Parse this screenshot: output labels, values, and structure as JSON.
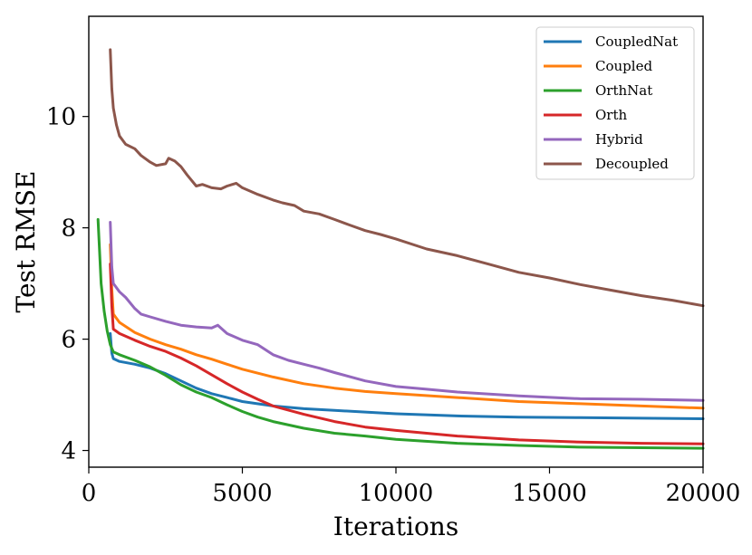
{
  "chart_data": {
    "type": "line",
    "title": "",
    "xlabel": "Iterations",
    "ylabel": "Test RMSE",
    "xlim": [
      0,
      20000
    ],
    "ylim": [
      3.7,
      11.8
    ],
    "xticks": [
      0,
      5000,
      10000,
      15000,
      20000
    ],
    "yticks": [
      4,
      6,
      8,
      10
    ],
    "legend_position": "top-right",
    "grid": false,
    "series": [
      {
        "name": "CoupledNat",
        "color": "#1f77b4",
        "x": [
          700,
          750,
          800,
          1000,
          1500,
          2000,
          2500,
          3000,
          3500,
          4000,
          4500,
          5000,
          6000,
          7000,
          8000,
          9000,
          10000,
          12000,
          14000,
          16000,
          18000,
          20000
        ],
        "y": [
          6.1,
          5.75,
          5.65,
          5.6,
          5.55,
          5.48,
          5.38,
          5.25,
          5.12,
          5.02,
          4.95,
          4.88,
          4.8,
          4.75,
          4.72,
          4.69,
          4.66,
          4.62,
          4.6,
          4.59,
          4.58,
          4.57
        ]
      },
      {
        "name": "Coupled",
        "color": "#ff7f0e",
        "x": [
          700,
          750,
          800,
          1000,
          1500,
          2000,
          2500,
          3000,
          3500,
          4000,
          4500,
          5000,
          6000,
          7000,
          8000,
          9000,
          10000,
          12000,
          14000,
          16000,
          18000,
          20000
        ],
        "y": [
          7.7,
          6.9,
          6.45,
          6.3,
          6.12,
          6.0,
          5.9,
          5.82,
          5.72,
          5.64,
          5.55,
          5.46,
          5.32,
          5.2,
          5.12,
          5.06,
          5.02,
          4.95,
          4.88,
          4.84,
          4.8,
          4.76
        ]
      },
      {
        "name": "OrthNat",
        "color": "#2ca02c",
        "x": [
          300,
          400,
          500,
          600,
          700,
          800,
          1000,
          1500,
          2000,
          2500,
          3000,
          3500,
          4000,
          4500,
          5000,
          5500,
          6000,
          7000,
          8000,
          9000,
          10000,
          12000,
          14000,
          16000,
          18000,
          20000
        ],
        "y": [
          8.15,
          7.0,
          6.5,
          6.15,
          5.9,
          5.77,
          5.72,
          5.62,
          5.5,
          5.35,
          5.18,
          5.05,
          4.95,
          4.82,
          4.7,
          4.6,
          4.52,
          4.4,
          4.31,
          4.26,
          4.2,
          4.13,
          4.09,
          4.06,
          4.05,
          4.04
        ]
      },
      {
        "name": "Orth",
        "color": "#d62728",
        "x": [
          700,
          750,
          800,
          1000,
          1500,
          2000,
          2500,
          3000,
          3500,
          4000,
          4500,
          5000,
          5500,
          6000,
          7000,
          8000,
          9000,
          10000,
          12000,
          14000,
          16000,
          18000,
          20000
        ],
        "y": [
          7.35,
          6.6,
          6.18,
          6.1,
          5.98,
          5.87,
          5.78,
          5.66,
          5.52,
          5.36,
          5.2,
          5.05,
          4.92,
          4.8,
          4.65,
          4.52,
          4.42,
          4.36,
          4.26,
          4.19,
          4.15,
          4.13,
          4.12
        ]
      },
      {
        "name": "Hybrid",
        "color": "#9467bd",
        "x": [
          700,
          750,
          800,
          1000,
          1200,
          1500,
          1700,
          2000,
          2500,
          3000,
          3500,
          4000,
          4200,
          4500,
          5000,
          5500,
          6000,
          6500,
          7000,
          7500,
          8000,
          9000,
          10000,
          11000,
          12000,
          14000,
          16000,
          18000,
          20000
        ],
        "y": [
          8.1,
          7.3,
          7.0,
          6.85,
          6.75,
          6.55,
          6.45,
          6.4,
          6.32,
          6.25,
          6.22,
          6.2,
          6.25,
          6.1,
          5.98,
          5.9,
          5.72,
          5.62,
          5.55,
          5.48,
          5.4,
          5.25,
          5.15,
          5.1,
          5.05,
          4.98,
          4.93,
          4.92,
          4.9
        ]
      },
      {
        "name": "Decoupled",
        "color": "#8c564b",
        "x": [
          700,
          750,
          800,
          900,
          1000,
          1200,
          1500,
          1700,
          2000,
          2200,
          2500,
          2600,
          2800,
          3000,
          3200,
          3500,
          3700,
          4000,
          4300,
          4500,
          4800,
          5000,
          5500,
          6000,
          6300,
          6700,
          7000,
          7500,
          8000,
          8500,
          9000,
          9500,
          10000,
          11000,
          12000,
          13000,
          14000,
          15000,
          16000,
          17000,
          18000,
          19000,
          20000
        ],
        "y": [
          11.2,
          10.5,
          10.15,
          9.85,
          9.65,
          9.5,
          9.42,
          9.3,
          9.18,
          9.12,
          9.15,
          9.25,
          9.2,
          9.1,
          8.95,
          8.75,
          8.78,
          8.72,
          8.7,
          8.75,
          8.8,
          8.72,
          8.6,
          8.5,
          8.45,
          8.4,
          8.3,
          8.25,
          8.15,
          8.05,
          7.95,
          7.88,
          7.8,
          7.62,
          7.5,
          7.35,
          7.2,
          7.1,
          6.98,
          6.88,
          6.78,
          6.7,
          6.6
        ]
      }
    ]
  }
}
